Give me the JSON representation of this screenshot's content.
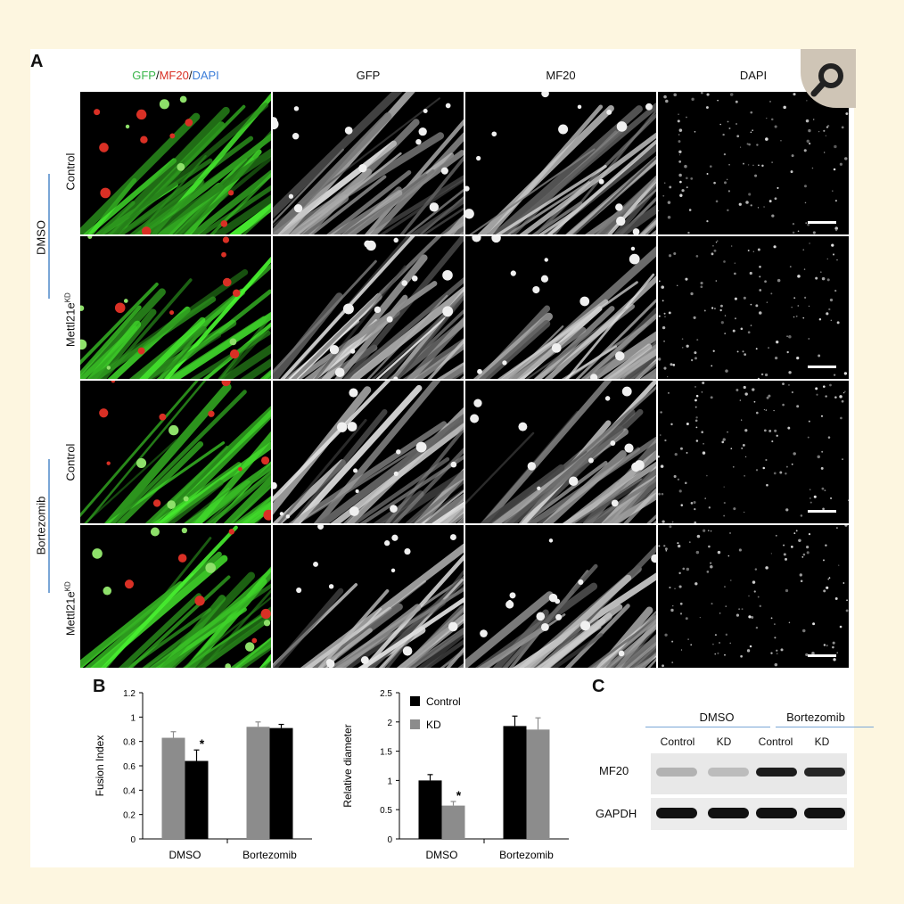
{
  "panelA": {
    "letter": "A",
    "columns": [
      {
        "parts": [
          {
            "text": "GFP",
            "color": "#39b54a"
          },
          {
            "text": "/",
            "color": "#111111"
          },
          {
            "text": "MF20",
            "color": "#d93025"
          },
          {
            "text": "/",
            "color": "#111111"
          },
          {
            "text": "DAPI",
            "color": "#3b7dd8"
          }
        ]
      },
      {
        "parts": [
          {
            "text": "GFP",
            "color": "#111111"
          }
        ]
      },
      {
        "parts": [
          {
            "text": "MF20",
            "color": "#111111"
          }
        ]
      },
      {
        "parts": [
          {
            "text": "DAPI",
            "color": "#111111"
          }
        ]
      }
    ],
    "groups": [
      "DMSO",
      "Bortezomib"
    ],
    "rows": [
      {
        "label": "Control",
        "sup": ""
      },
      {
        "label": "Mettl21e",
        "sup": "KD"
      },
      {
        "label": "Control",
        "sup": ""
      },
      {
        "label": "Mettl21e",
        "sup": "KD"
      }
    ]
  },
  "panelB": {
    "letter": "B",
    "legend": [
      "Control",
      "KD"
    ],
    "colors": {
      "control": "#000000",
      "kd": "#8c8c8c"
    }
  },
  "panelC": {
    "letter": "C",
    "groups": [
      "DMSO",
      "Bortezomib"
    ],
    "lanes": [
      "Control",
      "KD",
      "Control",
      "KD"
    ],
    "rows": [
      "MF20",
      "GAPDH"
    ],
    "mf20_intensity": [
      0.25,
      0.2,
      0.95,
      0.9
    ],
    "gapdh_intensity": [
      1,
      1,
      1,
      1
    ]
  },
  "chart_data": [
    {
      "type": "bar",
      "categories": [
        "DMSO",
        "Bortezomib"
      ],
      "ylabel": "Fusion Index",
      "ylim": [
        0,
        1.2
      ],
      "yticks": [
        "0",
        "0.2",
        "0.4",
        "0.6",
        "0.8",
        "1",
        "1.2"
      ],
      "series": [
        {
          "values": [
            0.83,
            0.92
          ],
          "errors": [
            0.05,
            0.04
          ],
          "color": "#8c8c8c"
        },
        {
          "values": [
            0.64,
            0.91
          ],
          "errors": [
            0.09,
            0.03
          ],
          "color": "#000000"
        }
      ],
      "annotations": [
        {
          "category": "DMSO",
          "series_index": 1,
          "text": "*"
        }
      ]
    },
    {
      "type": "bar",
      "categories": [
        "DMSO",
        "Bortezomib"
      ],
      "ylabel": "Relative diameter",
      "ylim": [
        0,
        2.5
      ],
      "yticks": [
        "0",
        "0.5",
        "1",
        "1.5",
        "2",
        "2.5"
      ],
      "series": [
        {
          "name": "Control",
          "values": [
            1.0,
            1.93
          ],
          "errors": [
            0.1,
            0.17
          ],
          "color": "#000000"
        },
        {
          "name": "KD",
          "values": [
            0.57,
            1.87
          ],
          "errors": [
            0.07,
            0.2
          ],
          "color": "#8c8c8c"
        }
      ],
      "legend": "top-right",
      "annotations": [
        {
          "category": "DMSO",
          "series_index": 1,
          "text": "*"
        }
      ]
    }
  ]
}
